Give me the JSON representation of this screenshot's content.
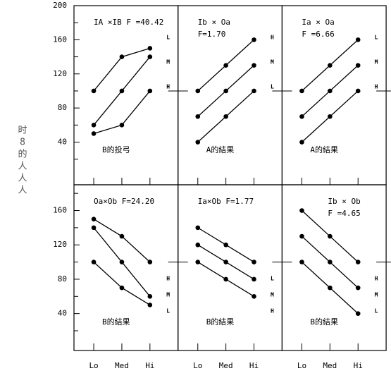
{
  "side_text": [
    "时",
    "8",
    "的",
    "人",
    "人",
    "人"
  ],
  "chart_data": [
    {
      "type": "line",
      "annotation": [
        "IA ×IB   F =40.42"
      ],
      "annotation_align": "left",
      "xlabel": "B的投弓",
      "categories": [
        null,
        null,
        null
      ],
      "ylim": [
        -10,
        200
      ],
      "yticks": [
        40,
        80,
        120,
        160,
        200
      ],
      "yminor": [
        20,
        60,
        100,
        140,
        180
      ],
      "hline": 100,
      "series": [
        {
          "name": "L",
          "color": "#000000",
          "values": [
            100,
            140,
            150
          ]
        },
        {
          "name": "M",
          "color": "#000000",
          "values": [
            60,
            100,
            140
          ]
        },
        {
          "name": "H",
          "color": "#000000",
          "values": [
            50,
            60,
            100
          ]
        }
      ]
    },
    {
      "type": "line",
      "annotation": [
        "Ib × Oa",
        "F=1.70"
      ],
      "annotation_align": "left",
      "xlabel": "A的結果",
      "categories": [
        null,
        null,
        null
      ],
      "ylim": [
        -10,
        200
      ],
      "hline": 100,
      "series": [
        {
          "name": "H",
          "color": "#000000",
          "values": [
            100,
            130,
            160
          ]
        },
        {
          "name": "M",
          "color": "#000000",
          "values": [
            70,
            100,
            130
          ]
        },
        {
          "name": "L",
          "color": "#000000",
          "values": [
            40,
            70,
            100
          ]
        }
      ]
    },
    {
      "type": "line",
      "annotation": [
        "Ia × Oa",
        "F =6.66"
      ],
      "annotation_align": "left",
      "xlabel": "A的結果",
      "categories": [
        null,
        null,
        null
      ],
      "ylim": [
        -10,
        200
      ],
      "hline": 100,
      "series": [
        {
          "name": "L",
          "color": "#000000",
          "values": [
            100,
            130,
            160
          ]
        },
        {
          "name": "M",
          "color": "#000000",
          "values": [
            70,
            100,
            130
          ]
        },
        {
          "name": "H",
          "color": "#000000",
          "values": [
            40,
            70,
            100
          ]
        }
      ]
    },
    {
      "type": "line",
      "annotation": [
        "Oa×Ob  F=24.20"
      ],
      "annotation_align": "left",
      "xlabel": "B的結果",
      "categories": [
        "Lo",
        "Med",
        "Hi"
      ],
      "ylim": [
        -3,
        190
      ],
      "yticks": [
        40,
        80,
        120,
        160
      ],
      "yminor": [
        20,
        60,
        100,
        140,
        180
      ],
      "hline": 100,
      "series": [
        {
          "name": "H",
          "color": "#000000",
          "values": [
            150,
            130,
            100
          ]
        },
        {
          "name": "M",
          "color": "#000000",
          "values": [
            140,
            100,
            60
          ]
        },
        {
          "name": "L",
          "color": "#000000",
          "values": [
            100,
            70,
            50
          ]
        }
      ]
    },
    {
      "type": "line",
      "annotation": [
        "Ia×Ob     F=1.77"
      ],
      "annotation_align": "left",
      "xlabel": "B的結果",
      "categories": [
        "Lo",
        "Med",
        "Hi"
      ],
      "ylim": [
        -3,
        190
      ],
      "hline": 100,
      "series": [
        {
          "name": "L",
          "color": "#000000",
          "values": [
            140,
            120,
            100
          ]
        },
        {
          "name": "M",
          "color": "#000000",
          "values": [
            120,
            100,
            80
          ]
        },
        {
          "name": "H",
          "color": "#000000",
          "values": [
            100,
            80,
            60
          ]
        }
      ]
    },
    {
      "type": "line",
      "annotation": [
        "Ib × Ob",
        "F =4.65"
      ],
      "annotation_align": "right",
      "xlabel": "B的結果",
      "categories": [
        "Lo",
        "Med",
        "Hi"
      ],
      "ylim": [
        -3,
        190
      ],
      "hline": 100,
      "series": [
        {
          "name": "H",
          "color": "#000000",
          "values": [
            160,
            130,
            100
          ]
        },
        {
          "name": "M",
          "color": "#000000",
          "values": [
            130,
            100,
            70
          ]
        },
        {
          "name": "L",
          "color": "#000000",
          "values": [
            100,
            70,
            40
          ]
        }
      ]
    }
  ]
}
